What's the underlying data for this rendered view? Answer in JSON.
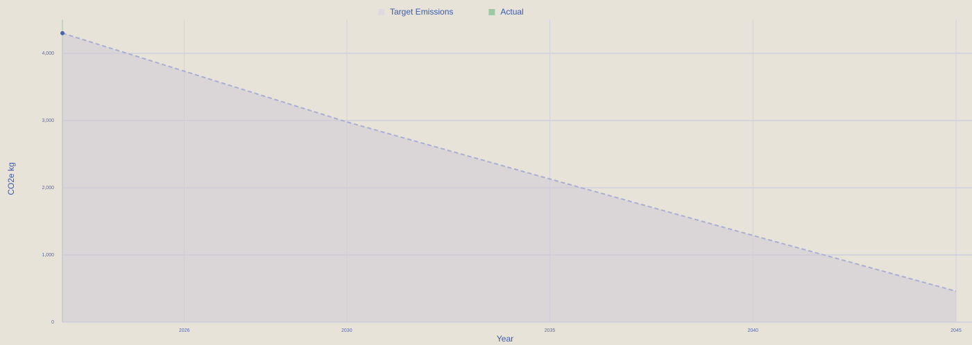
{
  "chart_data": {
    "type": "area",
    "x": [
      2023,
      2030,
      2035,
      2040,
      2045
    ],
    "series": [
      {
        "name": "Target Emissions",
        "color": "#a9afd2",
        "values": [
          4300,
          2980,
          2130,
          1290,
          460
        ]
      },
      {
        "name": "Actual",
        "color": "#9cc9a4",
        "values": [
          null,
          null,
          null,
          null,
          null
        ]
      }
    ],
    "xlabel": "Year",
    "ylabel": "CO2e kg",
    "xlim": [
      2023,
      2045
    ],
    "xticks": [
      2026,
      2030,
      2035,
      2040,
      2045
    ],
    "ylim": [
      0,
      4500
    ],
    "yticks": [
      0,
      {
        "value": 1000,
        "label": "1,000"
      },
      {
        "value": 2000,
        "label": "2,000"
      },
      {
        "value": 3000,
        "label": "3,000"
      },
      {
        "value": 4000,
        "label": "4,000"
      }
    ],
    "grid": true,
    "legend": "top"
  }
}
